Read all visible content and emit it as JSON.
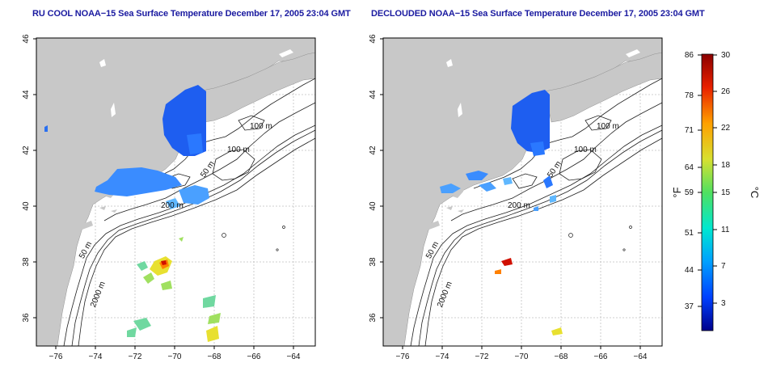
{
  "panels": [
    {
      "title": "RU COOL NOAA−15 Sea Surface Temperature December 17, 2005 23:04 GMT",
      "variant": "cool"
    },
    {
      "title": "DECLOUDED NOAA−15 Sea Surface Temperature December 17, 2005 23:04 GMT",
      "variant": "declouded"
    }
  ],
  "axes": {
    "x_ticks": [
      "−76",
      "−74",
      "−72",
      "−70",
      "−68",
      "−66",
      "−64"
    ],
    "y_ticks": [
      "36",
      "38",
      "40",
      "42",
      "44",
      "46"
    ]
  },
  "contour_labels": {
    "c100a": "100 m",
    "c100b": "100 m",
    "c50a": "50 m",
    "c200": "200 m",
    "c50b": "50 m",
    "c2000": "2000 m"
  },
  "colorbar": {
    "unit_f": "°F",
    "unit_c": "°C",
    "f_ticks": [
      "86",
      "78",
      "71",
      "64",
      "59",
      "51",
      "44",
      "37"
    ],
    "c_ticks": [
      "30",
      "26",
      "22",
      "18",
      "15",
      "11",
      "7",
      "3"
    ],
    "colors": [
      "#00008b",
      "#0040ff",
      "#00b0ff",
      "#00e8c8",
      "#60e060",
      "#e8e030",
      "#ff9000",
      "#e01000",
      "#8b0000"
    ]
  },
  "colors": {
    "land": "#c8c8c8",
    "ocean": "#ffffff",
    "grid": "#c0c0c0",
    "title": "#1a1aa0"
  }
}
